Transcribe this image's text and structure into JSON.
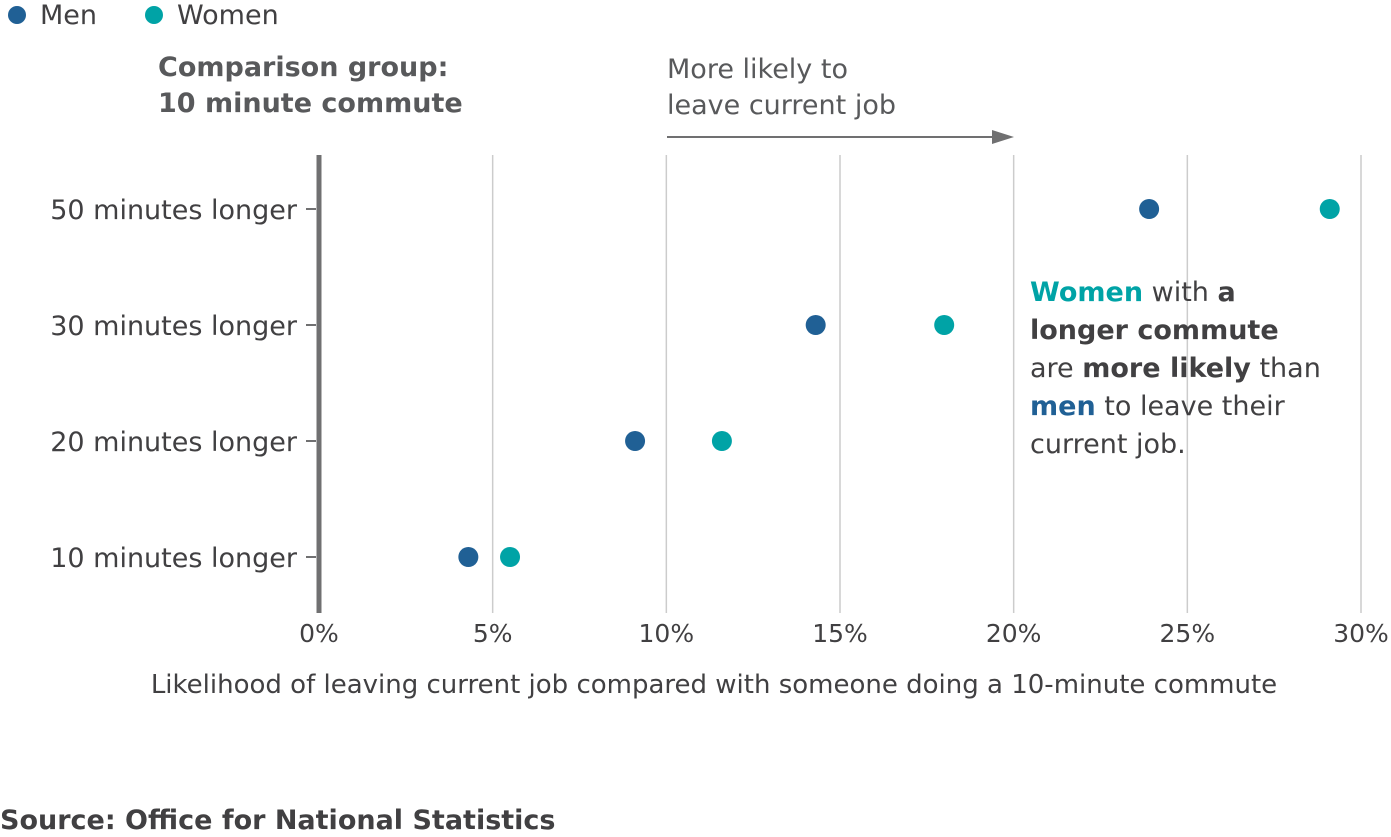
{
  "legend": {
    "men_label": "Men",
    "women_label": "Women"
  },
  "colors": {
    "men": "#206095",
    "women": "#00a3a6",
    "grid": "#cccccc",
    "axis": "#707071",
    "arrow": "#707071"
  },
  "comparison": {
    "line1": "Comparison group:",
    "line2": "10 minute commute"
  },
  "direction": {
    "line1": "More likely to",
    "line2": "leave current job"
  },
  "annotation": {
    "women": "Women",
    "with": " with ",
    "a": "a",
    "longer_commute": "longer commute",
    "are": "are ",
    "more_likely": "more likely",
    "than": " than",
    "men": "men",
    "to_leave": " to leave their",
    "current_job": "current job."
  },
  "source": "Source: Office for National Statistics",
  "chart_data": {
    "type": "scatter",
    "categories": [
      "50 minutes longer",
      "30 minutes longer",
      "20 minutes longer",
      "10 minutes longer"
    ],
    "series": [
      {
        "name": "Men",
        "values": [
          23.9,
          14.3,
          9.1,
          4.3
        ]
      },
      {
        "name": "Women",
        "values": [
          29.1,
          18.0,
          11.6,
          5.5
        ]
      }
    ],
    "x_ticks": [
      0,
      5,
      10,
      15,
      20,
      25,
      30
    ],
    "x_tick_labels": [
      "0%",
      "5%",
      "10%",
      "15%",
      "20%",
      "25%",
      "30%"
    ],
    "xlabel": "Likelihood of leaving current job compared with someone doing a 10-minute commute",
    "ylabel": "",
    "xlim": [
      0,
      30
    ],
    "grid": true
  }
}
